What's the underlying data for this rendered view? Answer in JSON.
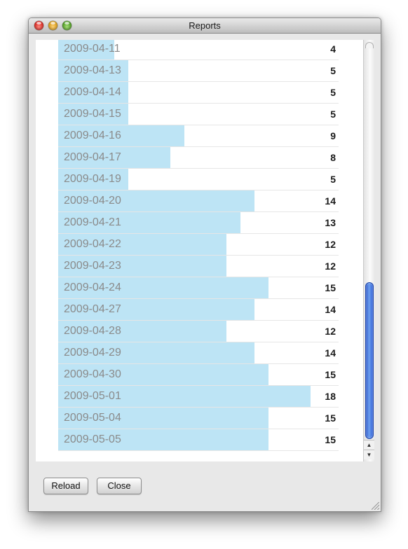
{
  "window": {
    "title": "Reports"
  },
  "buttons": {
    "reload": "Reload",
    "close": "Close"
  },
  "report": {
    "bar_color": "#bde4f5",
    "max_count": 20,
    "rows": [
      {
        "date": "2009-04-11",
        "count": 4
      },
      {
        "date": "2009-04-13",
        "count": 5
      },
      {
        "date": "2009-04-14",
        "count": 5
      },
      {
        "date": "2009-04-15",
        "count": 5
      },
      {
        "date": "2009-04-16",
        "count": 9
      },
      {
        "date": "2009-04-17",
        "count": 8
      },
      {
        "date": "2009-04-19",
        "count": 5
      },
      {
        "date": "2009-04-20",
        "count": 14
      },
      {
        "date": "2009-04-21",
        "count": 13
      },
      {
        "date": "2009-04-22",
        "count": 12
      },
      {
        "date": "2009-04-23",
        "count": 12
      },
      {
        "date": "2009-04-24",
        "count": 15
      },
      {
        "date": "2009-04-27",
        "count": 14
      },
      {
        "date": "2009-04-28",
        "count": 12
      },
      {
        "date": "2009-04-29",
        "count": 14
      },
      {
        "date": "2009-04-30",
        "count": 15
      },
      {
        "date": "2009-05-01",
        "count": 18
      },
      {
        "date": "2009-05-04",
        "count": 15
      },
      {
        "date": "2009-05-05",
        "count": 15
      }
    ]
  },
  "scrollbar": {
    "position_fraction": 0.87
  },
  "icons": {
    "close": "close-window-icon",
    "minimize": "minimize-window-icon",
    "zoom": "zoom-window-icon",
    "up": "scroll-up-arrow-icon",
    "down": "scroll-down-arrow-icon",
    "resize": "resize-grip-icon"
  }
}
